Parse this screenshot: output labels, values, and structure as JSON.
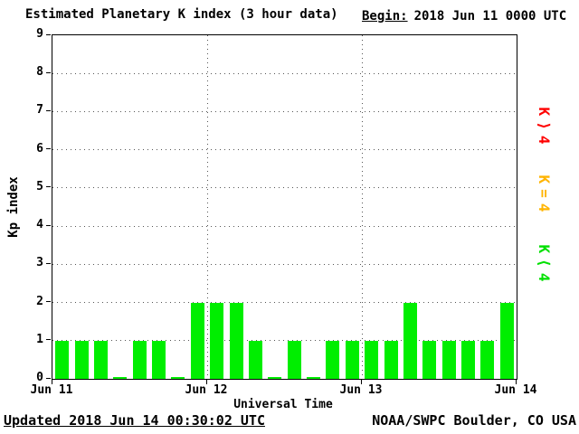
{
  "header": {
    "title": "Estimated Planetary K index (3 hour data)",
    "begin_label": "Begin:",
    "begin_value": "2018 Jun 11 0000 UTC"
  },
  "footer": {
    "updated": "Updated 2018 Jun 14 00:30:02 UTC",
    "source": "NOAA/SWPC Boulder, CO USA"
  },
  "legend": [
    {
      "label": "K⟩4",
      "color": "#ff0000"
    },
    {
      "label": "K=4",
      "color": "#ffb400"
    },
    {
      "label": "K⟨4",
      "color": "#00e000"
    }
  ],
  "chart_data": {
    "type": "bar",
    "title": "Estimated Planetary K index (3 hour data)",
    "xlabel": "Universal Time",
    "ylabel": "Kp index",
    "ylim": [
      0,
      9
    ],
    "yticks": [
      0,
      1,
      2,
      3,
      4,
      5,
      6,
      7,
      8,
      9
    ],
    "x_day_labels": [
      "Jun 11",
      "Jun 12",
      "Jun 13",
      "Jun 14"
    ],
    "bar_interval_hours": 3,
    "x_start_label": "2018 Jun 11 0000 UTC",
    "values": [
      1,
      1,
      1,
      0,
      1,
      1,
      0,
      2,
      2,
      2,
      1,
      0,
      1,
      0,
      1,
      1,
      1,
      1,
      2,
      1,
      1,
      1,
      1,
      2
    ],
    "colors": {
      "lt4": "#00ee00",
      "eq4": "#ffb400",
      "gt4": "#ff0000"
    },
    "grid": "dotted horizontal lines at each Kp integer, dotted vertical lines at day boundaries",
    "legend_position": "right, rotated 90deg"
  }
}
